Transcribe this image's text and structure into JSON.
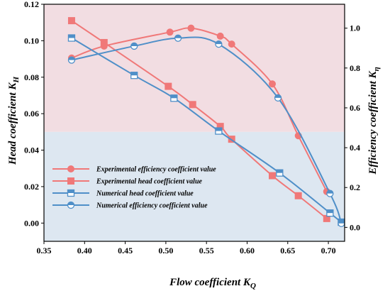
{
  "chart_data": {
    "type": "line",
    "xlabel": "Flow coefficient K",
    "xlabel_sub": "Q",
    "ylabel_left": "Head coefficient K",
    "ylabel_left_sub": "H",
    "ylabel_right": "Efficiency coefficient K",
    "ylabel_right_sub": "η",
    "xlim": [
      0.35,
      0.72
    ],
    "ylim_left": [
      -0.01,
      0.12
    ],
    "ylim_right": [
      -0.07,
      1.12
    ],
    "xticks": [
      "0.35",
      "0.40",
      "0.45",
      "0.50",
      "0.55",
      "0.60",
      "0.65",
      "0.70"
    ],
    "yticks_left": [
      "0.00",
      "0.02",
      "0.04",
      "0.06",
      "0.08",
      "0.10",
      "0.12"
    ],
    "yticks_right": [
      "0.0",
      "0.2",
      "0.4",
      "0.6",
      "0.8",
      "1.0"
    ],
    "background_bands": {
      "upper_color": "#f2dde2",
      "lower_color": "#dde7f1",
      "split_value_left": 0.05
    },
    "legend_position": "lower-left",
    "series": [
      {
        "name": "Experimental efficiency coefficient value",
        "axis": "right",
        "color": "#f07878",
        "marker": "circle-filled",
        "x": [
          0.384,
          0.424,
          0.505,
          0.531,
          0.567,
          0.581,
          0.631,
          0.663,
          0.698
        ],
        "y": [
          0.85,
          0.91,
          0.98,
          1.0,
          0.96,
          0.92,
          0.72,
          0.46,
          0.18
        ]
      },
      {
        "name": "Experimental head coefficient value",
        "axis": "left",
        "color": "#f07878",
        "marker": "square-filled",
        "x": [
          0.384,
          0.424,
          0.503,
          0.533,
          0.567,
          0.581,
          0.631,
          0.663,
          0.698
        ],
        "y": [
          0.111,
          0.099,
          0.075,
          0.065,
          0.053,
          0.046,
          0.026,
          0.015,
          0.0025
        ]
      },
      {
        "name": "Numerical head coefficient value",
        "axis": "left",
        "color": "#4f8fc8",
        "marker": "square-half",
        "x": [
          0.384,
          0.461,
          0.51,
          0.565,
          0.64,
          0.702,
          0.716
        ],
        "y": [
          0.1015,
          0.081,
          0.0685,
          0.0505,
          0.0275,
          0.0055,
          0.0005
        ]
      },
      {
        "name": "Numerical efficiency coefficient value",
        "axis": "right",
        "color": "#4f8fc8",
        "marker": "circle-half",
        "x": [
          0.384,
          0.461,
          0.515,
          0.565,
          0.638,
          0.702,
          0.716
        ],
        "y": [
          0.84,
          0.91,
          0.95,
          0.92,
          0.65,
          0.17,
          0.02
        ]
      }
    ]
  }
}
